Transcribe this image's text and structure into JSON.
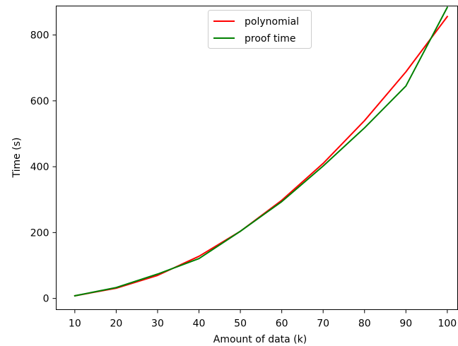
{
  "chart_data": {
    "type": "line",
    "xlabel": "Amount of data (k)",
    "ylabel": "Time (s)",
    "x": [
      10,
      20,
      30,
      40,
      50,
      60,
      70,
      80,
      90,
      100
    ],
    "xticks": [
      10,
      20,
      30,
      40,
      50,
      60,
      70,
      80,
      90,
      100
    ],
    "yticks": [
      0,
      200,
      400,
      600,
      800
    ],
    "xlim": [
      5.5,
      102.5
    ],
    "ylim": [
      -34,
      888
    ],
    "grid": false,
    "legend_position": "top-center",
    "series": [
      {
        "name": "polynomial",
        "color": "#ff0000",
        "values": [
          8,
          31,
          70,
          128,
          204,
          298,
          410,
          540,
          688,
          856
        ]
      },
      {
        "name": "proof time",
        "color": "#008000",
        "values": [
          8,
          33,
          74,
          121,
          204,
          294,
          402,
          518,
          645,
          884
        ]
      }
    ]
  }
}
